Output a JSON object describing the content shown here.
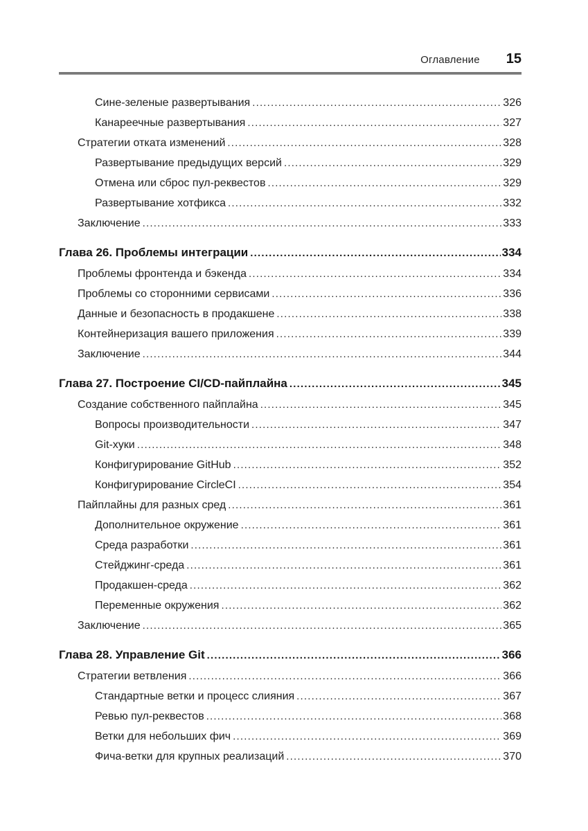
{
  "header": {
    "title": "Оглавление",
    "page_number": "15"
  },
  "colors": {
    "text": "#1f1f1f",
    "rule": "#787878"
  },
  "toc": {
    "entries": [
      {
        "level": 2,
        "title": "Сине-зеленые развертывания",
        "page": "326"
      },
      {
        "level": 2,
        "title": "Канареечные развертывания",
        "page": "327"
      },
      {
        "level": 1,
        "title": "Стратегии отката изменений",
        "page": "328"
      },
      {
        "level": 2,
        "title": "Развертывание предыдущих версий",
        "page": "329"
      },
      {
        "level": 2,
        "title": "Отмена или сброс пул-реквестов",
        "page": "329"
      },
      {
        "level": 2,
        "title": "Развертывание хотфикса",
        "page": "332"
      },
      {
        "level": 1,
        "title": "Заключение",
        "page": "333"
      },
      {
        "level": 0,
        "title": "Глава 26. Проблемы интеграции",
        "page": "334"
      },
      {
        "level": 1,
        "title": "Проблемы фронтенда и бэкенда",
        "page": "334"
      },
      {
        "level": 1,
        "title": "Проблемы со сторонними сервисами",
        "page": "336"
      },
      {
        "level": 1,
        "title": "Данные и безопасность в продакшене",
        "page": "338"
      },
      {
        "level": 1,
        "title": "Контейнеризация вашего приложения",
        "page": "339"
      },
      {
        "level": 1,
        "title": "Заключение",
        "page": "344"
      },
      {
        "level": 0,
        "title": "Глава 27. Построение CI/CD-пайплайна",
        "page": "345"
      },
      {
        "level": 1,
        "title": "Создание собственного пайплайна",
        "page": "345"
      },
      {
        "level": 2,
        "title": "Вопросы производительности",
        "page": "347"
      },
      {
        "level": 2,
        "title": "Git-хуки",
        "page": "348"
      },
      {
        "level": 2,
        "title": "Конфигурирование GitHub",
        "page": "352"
      },
      {
        "level": 2,
        "title": "Конфигурирование CircleCI",
        "page": "354"
      },
      {
        "level": 1,
        "title": "Пайплайны для разных сред",
        "page": "361"
      },
      {
        "level": 2,
        "title": "Дополнительное окружение",
        "page": "361"
      },
      {
        "level": 2,
        "title": "Среда разработки",
        "page": "361"
      },
      {
        "level": 2,
        "title": "Стейджинг-среда",
        "page": "361"
      },
      {
        "level": 2,
        "title": "Продакшен-среда",
        "page": "362"
      },
      {
        "level": 2,
        "title": "Переменные окружения",
        "page": "362"
      },
      {
        "level": 1,
        "title": "Заключение",
        "page": "365"
      },
      {
        "level": 0,
        "title": "Глава 28. Управление Git",
        "page": "366"
      },
      {
        "level": 1,
        "title": "Стратегии ветвления",
        "page": "366"
      },
      {
        "level": 2,
        "title": "Стандартные ветки и процесс слияния",
        "page": "367"
      },
      {
        "level": 2,
        "title": "Ревью пул-реквестов",
        "page": "368"
      },
      {
        "level": 2,
        "title": "Ветки для небольших фич",
        "page": "369"
      },
      {
        "level": 2,
        "title": "Фича-ветки для крупных реализаций",
        "page": "370"
      }
    ]
  }
}
